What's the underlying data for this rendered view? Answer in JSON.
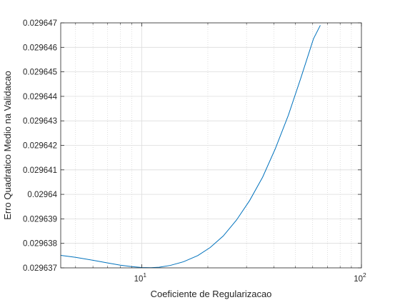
{
  "chart_data": {
    "type": "line",
    "title": "",
    "xlabel": "Coeficiente de Regularizacao",
    "ylabel": "Erro Quadratico Medio na Validacao",
    "x_scale": "log",
    "xlim": [
      4.28,
      100
    ],
    "ylim": [
      0.029637,
      0.029647
    ],
    "x_ticks": [
      {
        "value": 10,
        "base": "10",
        "exp": "1"
      },
      {
        "value": 100,
        "base": "10",
        "exp": "2"
      }
    ],
    "y_ticks": [
      {
        "value": 0.029637,
        "label": "0.029637"
      },
      {
        "value": 0.029638,
        "label": "0.029638"
      },
      {
        "value": 0.029639,
        "label": "0.029639"
      },
      {
        "value": 0.02964,
        "label": "0.02964"
      },
      {
        "value": 0.029641,
        "label": "0.029641"
      },
      {
        "value": 0.029642,
        "label": "0.029642"
      },
      {
        "value": 0.029643,
        "label": "0.029643"
      },
      {
        "value": 0.029644,
        "label": "0.029644"
      },
      {
        "value": 0.029645,
        "label": "0.029645"
      },
      {
        "value": 0.029646,
        "label": "0.029646"
      },
      {
        "value": 0.029647,
        "label": "0.029647"
      }
    ],
    "grid": true,
    "minor_grid": true,
    "series": [
      {
        "name": "",
        "color": "#0072BD",
        "x": [
          4.28,
          5.0,
          6.0,
          7.0,
          8.0,
          9.0,
          10.0,
          11.0,
          12.0,
          13.5,
          15.5,
          18.0,
          20.5,
          23.5,
          27.0,
          31.0,
          35.5,
          40.5,
          46.5,
          53.0,
          60.5,
          65.0
        ],
        "y": [
          0.02963751,
          0.02963743,
          0.02963731,
          0.0296372,
          0.02963711,
          0.02963705,
          0.029637015,
          0.029637008,
          0.029637025,
          0.0296371,
          0.02963725,
          0.0296375,
          0.02963783,
          0.0296383,
          0.02963895,
          0.02963975,
          0.0296407,
          0.02964185,
          0.02964323,
          0.02964475,
          0.02964635,
          0.0296469
        ]
      }
    ]
  }
}
